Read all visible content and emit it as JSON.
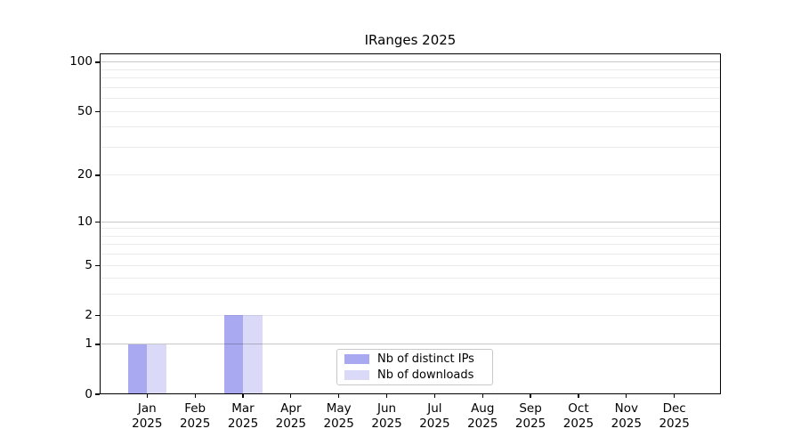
{
  "chart_data": {
    "type": "bar",
    "title": "IRanges 2025",
    "categories": [
      "Jan",
      "Feb",
      "Mar",
      "Apr",
      "May",
      "Jun",
      "Jul",
      "Aug",
      "Sep",
      "Oct",
      "Nov",
      "Dec"
    ],
    "x_tick_second_line": "2025",
    "series": [
      {
        "name": "Nb of distinct IPs",
        "color": "#a9a9f2",
        "values": [
          1,
          0,
          2,
          0,
          0,
          0,
          0,
          0,
          0,
          0,
          0,
          0
        ]
      },
      {
        "name": "Nb of downloads",
        "color": "#dadaf8",
        "values": [
          1,
          0,
          2,
          0,
          0,
          0,
          0,
          0,
          0,
          0,
          0,
          0
        ]
      }
    ],
    "y_scale": "log10(1+x)",
    "ylim": [
      0,
      113
    ],
    "y_ticks": [
      0,
      1,
      2,
      5,
      10,
      20,
      50,
      100
    ],
    "y_gridlines_major": [
      1,
      10,
      100
    ],
    "y_gridlines_minor": [
      2,
      3,
      4,
      5,
      6,
      7,
      8,
      9,
      20,
      30,
      40,
      50,
      60,
      70,
      80,
      90
    ],
    "grid": true,
    "legend_position": "bottom-center"
  }
}
